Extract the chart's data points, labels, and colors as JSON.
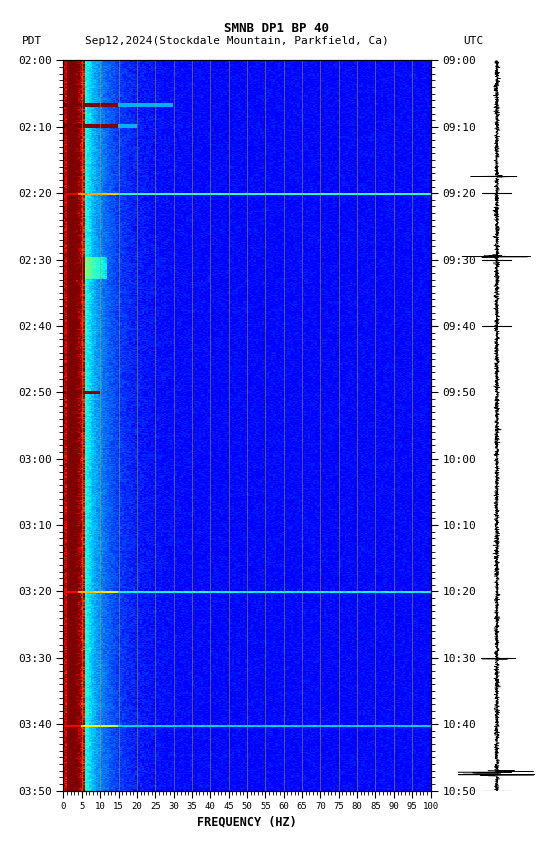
{
  "title_line1": "SMNB DP1 BP 40",
  "title_line2_left": "PDT",
  "title_line2_center": "Sep12,2024(Stockdale Mountain, Parkfield, Ca)",
  "title_line2_right": "UTC",
  "xlabel": "FREQUENCY (HZ)",
  "freq_min": 0,
  "freq_max": 100,
  "freq_ticks": [
    0,
    5,
    10,
    15,
    20,
    25,
    30,
    35,
    40,
    45,
    50,
    55,
    60,
    65,
    70,
    75,
    80,
    85,
    90,
    95,
    100
  ],
  "freq_grid_lines": [
    5,
    10,
    15,
    20,
    25,
    30,
    35,
    40,
    45,
    50,
    55,
    60,
    65,
    70,
    75,
    80,
    85,
    90,
    95,
    100
  ],
  "time_ticks_pdt": [
    "02:00",
    "02:10",
    "02:20",
    "02:30",
    "02:40",
    "02:50",
    "03:00",
    "03:10",
    "03:20",
    "03:30",
    "03:40",
    "03:50"
  ],
  "time_ticks_utc": [
    "09:00",
    "09:10",
    "09:20",
    "09:30",
    "09:40",
    "09:50",
    "10:00",
    "10:10",
    "10:20",
    "10:30",
    "10:40",
    "10:50"
  ],
  "n_time": 660,
  "n_freq": 200,
  "grid_line_color": "#c8a000",
  "grid_line_alpha": 0.55,
  "colormap": "jet",
  "seismograph_color": "black",
  "seismo_horizontal_ticks": [
    0.0,
    0.182,
    0.636,
    0.727,
    0.818
  ]
}
